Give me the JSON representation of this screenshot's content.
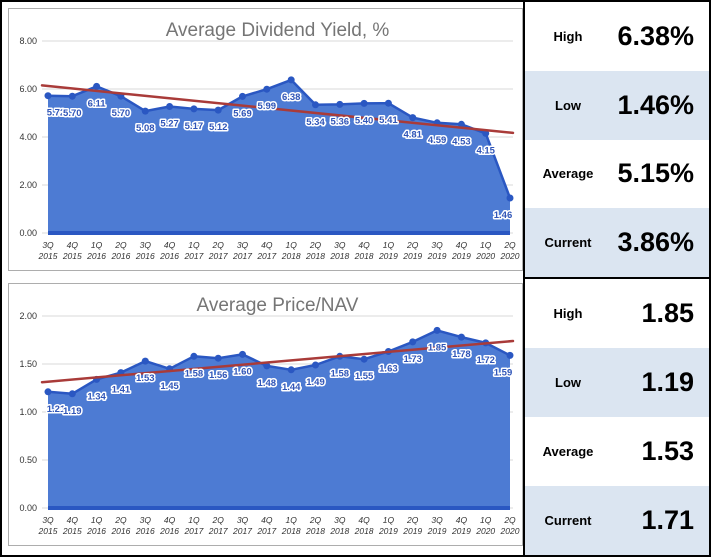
{
  "colors": {
    "area": "#4d7bd3",
    "line": "#2a57c2",
    "marker": "#2a57c2",
    "trend": "#a93b39",
    "data_label": "#3156b8",
    "grid": "#d8d8d8",
    "title": "#757575",
    "axis_text": "#333333",
    "panel_alt_row": "#dbe5f1",
    "border": "#000000",
    "chart_border": "#adadad"
  },
  "chart_data": [
    {
      "type": "area",
      "title": "Average Dividend Yield, %",
      "categories": [
        "3Q 2015",
        "4Q 2015",
        "1Q 2016",
        "2Q 2016",
        "3Q 2016",
        "4Q 2016",
        "1Q 2017",
        "2Q 2017",
        "3Q 2017",
        "4Q 2017",
        "1Q 2018",
        "2Q 2018",
        "3Q 2018",
        "4Q 2018",
        "1Q 2019",
        "2Q 2019",
        "3Q 2019",
        "4Q 2019",
        "1Q 2020",
        "2Q 2020"
      ],
      "values": [
        5.72,
        5.7,
        6.11,
        5.7,
        5.08,
        5.27,
        5.17,
        5.12,
        5.69,
        5.99,
        6.38,
        5.34,
        5.36,
        5.4,
        5.41,
        4.81,
        4.59,
        4.53,
        4.15,
        1.46
      ],
      "data_labels": [
        "5.72",
        "5.70",
        "6.11",
        "5.70",
        "5.08",
        "5.27",
        "5.17",
        "5.12",
        "5.69",
        "5.99",
        "6.38",
        "5.34",
        "5.36",
        "5.40",
        "5.41",
        "4.81",
        "4.59",
        "4.53",
        "4.15",
        "1.46"
      ],
      "ylim": [
        0,
        8
      ],
      "ytick_values": [
        8,
        6,
        4,
        2,
        0
      ],
      "ytick_labels": [
        "8.00",
        "6.00",
        "4.00",
        "2.00",
        "0.00"
      ],
      "trendline": {
        "start": 6.15,
        "end": 4.17
      },
      "grid": true,
      "legend": "none"
    },
    {
      "type": "area",
      "title": "Average Price/NAV",
      "categories": [
        "3Q 2015",
        "4Q 2015",
        "1Q 2016",
        "2Q 2016",
        "3Q 2016",
        "4Q 2016",
        "1Q 2017",
        "2Q 2017",
        "3Q 2017",
        "4Q 2017",
        "1Q 2018",
        "2Q 2018",
        "3Q 2018",
        "4Q 2018",
        "1Q 2019",
        "2Q 2019",
        "3Q 2019",
        "4Q 2019",
        "1Q 2020",
        "2Q 2020"
      ],
      "values": [
        1.21,
        1.19,
        1.34,
        1.41,
        1.53,
        1.45,
        1.58,
        1.56,
        1.6,
        1.48,
        1.44,
        1.49,
        1.58,
        1.55,
        1.63,
        1.73,
        1.85,
        1.78,
        1.72,
        1.59
      ],
      "data_labels": [
        "1.21",
        "1.19",
        "1.34",
        "1.41",
        "1.53",
        "1.45",
        "1.58",
        "1.56",
        "1.60",
        "1.48",
        "1.44",
        "1.49",
        "1.58",
        "1.55",
        "1.63",
        "1.73",
        "1.85",
        "1.78",
        "1.72",
        "1.59"
      ],
      "ylim": [
        0,
        2
      ],
      "ytick_values": [
        2,
        1.5,
        1,
        0.5,
        0
      ],
      "ytick_labels": [
        "2.00",
        "1.50",
        "1.00",
        "0.50",
        "0.00"
      ],
      "trendline": {
        "start": 1.31,
        "end": 1.74
      },
      "grid": true,
      "legend": "none"
    }
  ],
  "stats_panels": [
    {
      "rows": [
        {
          "label": "High",
          "value": "6.38%"
        },
        {
          "label": "Low",
          "value": "1.46%"
        },
        {
          "label": "Average",
          "value": "5.15%"
        },
        {
          "label": "Current",
          "value": "3.86%"
        }
      ]
    },
    {
      "rows": [
        {
          "label": "High",
          "value": "1.85"
        },
        {
          "label": "Low",
          "value": "1.19"
        },
        {
          "label": "Average",
          "value": "1.53"
        },
        {
          "label": "Current",
          "value": "1.71"
        }
      ]
    }
  ]
}
